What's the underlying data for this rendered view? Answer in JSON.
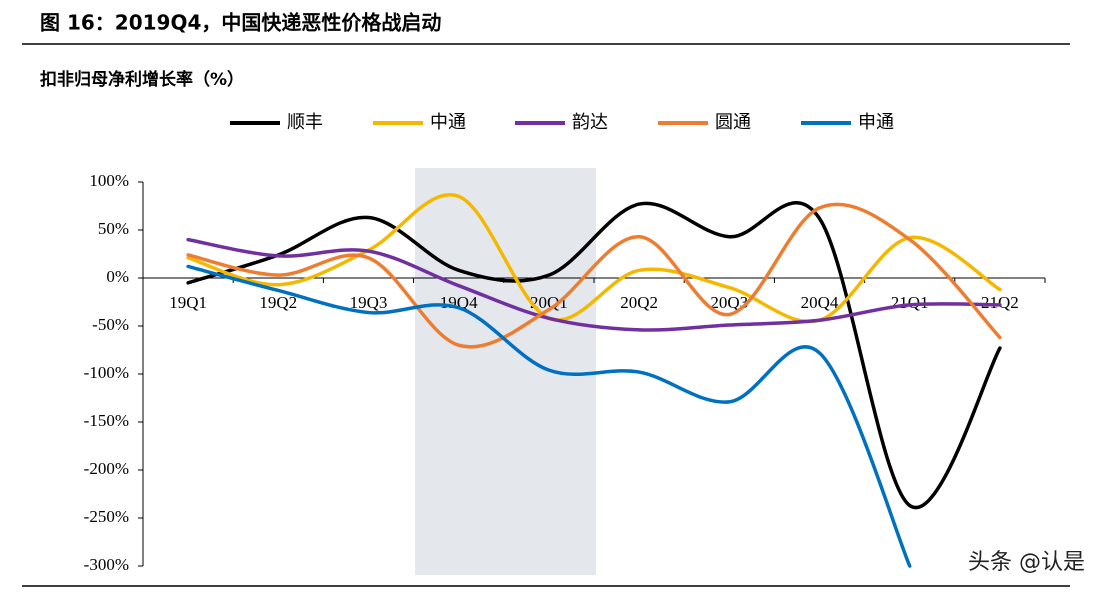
{
  "chart_data": {
    "type": "line",
    "title": "图 16：2019Q4，中国快递恶性价格战启动",
    "subtitle": "扣非归母净利增长率（%）",
    "watermark": "头条 @认是",
    "categories": [
      "19Q1",
      "19Q2",
      "19Q3",
      "19Q4",
      "20Q1",
      "20Q2",
      "20Q3",
      "20Q4",
      "21Q1",
      "21Q2"
    ],
    "series": [
      {
        "name": "顺丰",
        "color": "#000000",
        "values": [
          -5,
          24,
          63,
          8,
          3,
          77,
          43,
          62,
          -237,
          -73
        ]
      },
      {
        "name": "中通",
        "color": "#f5b800",
        "values": [
          21,
          -7,
          29,
          85,
          -42,
          8,
          -10,
          -44,
          42,
          -12
        ]
      },
      {
        "name": "韵达",
        "color": "#7030a0",
        "values": [
          40,
          23,
          28,
          -8,
          -42,
          -54,
          -49,
          -44,
          -28,
          -28
        ]
      },
      {
        "name": "圆通",
        "color": "#ed7d31",
        "values": [
          24,
          3,
          21,
          -70,
          -33,
          43,
          -38,
          73,
          40,
          -62
        ]
      },
      {
        "name": "申通",
        "color": "#0070c0",
        "values": [
          12,
          -13,
          -36,
          -31,
          -96,
          -98,
          -129,
          -78,
          -300,
          null
        ]
      }
    ],
    "ylim": [
      -300,
      100
    ],
    "yticks": [
      {
        "value": -300,
        "label": "-300%"
      },
      {
        "value": -250,
        "label": "-250%"
      },
      {
        "value": -200,
        "label": "-200%"
      },
      {
        "value": -150,
        "label": "-150%"
      },
      {
        "value": -100,
        "label": "-100%"
      },
      {
        "value": -50,
        "label": "-50%"
      },
      {
        "value": 0,
        "label": "0%"
      },
      {
        "value": 50,
        "label": "50%"
      },
      {
        "value": 100,
        "label": "100%"
      }
    ],
    "grid": false,
    "legend": "top"
  }
}
